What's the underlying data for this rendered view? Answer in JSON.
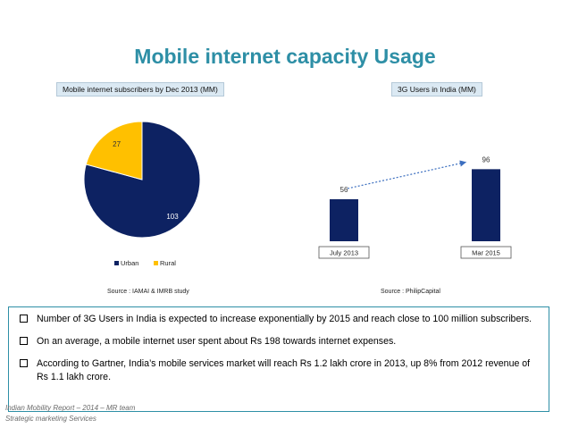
{
  "slide": {
    "title": "Mobile internet capacity Usage",
    "bullets": [
      "Number of 3G Users in India is expected to increase exponentially by 2015 and reach close to 100 million subscribers.",
      "On an average, a mobile internet user spent about Rs 198  towards internet expenses.",
      "According to Gartner, India’s mobile services market will reach Rs 1.2 lakh crore in 2013, up 8% from 2012 revenue of Rs 1.1 lakh crore."
    ],
    "footer_line1": "Indian Mobility Report – 2014 – MR team",
    "footer_line2": "Strategic marketing Services"
  },
  "colors": {
    "urban": "#0d2262",
    "rural": "#ffc000",
    "title": "#2e8fa6",
    "arrow": "#3b6ebf"
  },
  "chart_data": [
    {
      "type": "pie",
      "title": "Mobile internet subscribers by Dec 2013 (MM)",
      "categories": [
        "Urban",
        "Rural"
      ],
      "values": [
        103,
        27
      ],
      "legend": "bottom",
      "source": "Source : IAMAI & IMRB study"
    },
    {
      "type": "bar",
      "title": "3G Users in India (MM)",
      "categories": [
        "July 2013",
        "Mar 2015"
      ],
      "values": [
        56,
        96
      ],
      "ylim": [
        0,
        100
      ],
      "source": "Source : PhilipCapital"
    }
  ]
}
